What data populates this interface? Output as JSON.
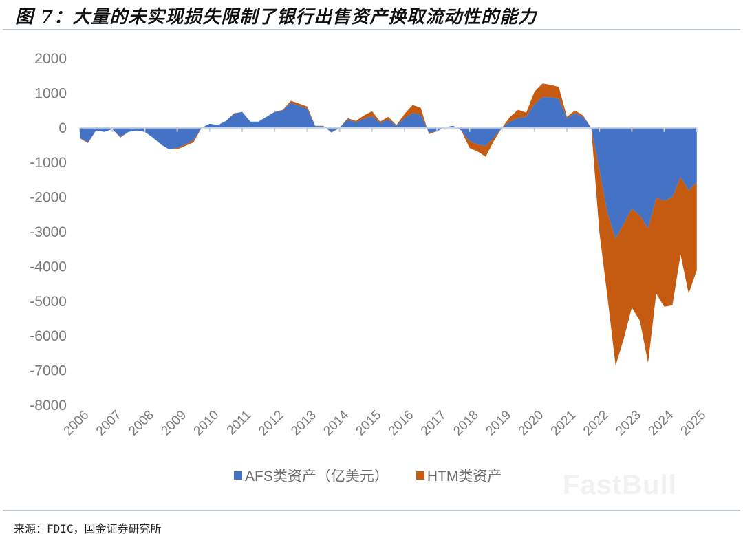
{
  "header": {
    "title": "图 7：大量的未实现损失限制了银行出售资产换取流动性的能力"
  },
  "footer": {
    "source": "来源：FDIC，国金证券研究所"
  },
  "watermark": "FastBull",
  "colors": {
    "afs": "#4472C4",
    "htm": "#C55A11",
    "axis": "#c8d2dc",
    "text": "#7a7a7a"
  },
  "chart_data": {
    "type": "area",
    "stacked": true,
    "title": "大量的未实现损失限制了银行出售资产换取流动性的能力",
    "xlabel": "",
    "ylabel": "",
    "ylim": [
      -8000,
      2000
    ],
    "yticks": [
      2000,
      1000,
      0,
      -1000,
      -2000,
      -3000,
      -4000,
      -5000,
      -6000,
      -7000,
      -8000
    ],
    "xtick_labels": [
      "2006",
      "2007",
      "2008",
      "2009",
      "2010",
      "2011",
      "2012",
      "2013",
      "2014",
      "2015",
      "2016",
      "2017",
      "2018",
      "2019",
      "2020",
      "2021",
      "2022",
      "2023",
      "2024",
      "2025"
    ],
    "grid": false,
    "legend_position": "bottom",
    "x": [
      "2006Q1",
      "2006Q2",
      "2006Q3",
      "2006Q4",
      "2007Q1",
      "2007Q2",
      "2007Q3",
      "2007Q4",
      "2008Q1",
      "2008Q2",
      "2008Q3",
      "2008Q4",
      "2009Q1",
      "2009Q2",
      "2009Q3",
      "2009Q4",
      "2010Q1",
      "2010Q2",
      "2010Q3",
      "2010Q4",
      "2011Q1",
      "2011Q2",
      "2011Q3",
      "2011Q4",
      "2012Q1",
      "2012Q2",
      "2012Q3",
      "2012Q4",
      "2013Q1",
      "2013Q2",
      "2013Q3",
      "2013Q4",
      "2014Q1",
      "2014Q2",
      "2014Q3",
      "2014Q4",
      "2015Q1",
      "2015Q2",
      "2015Q3",
      "2015Q4",
      "2016Q1",
      "2016Q2",
      "2016Q3",
      "2016Q4",
      "2017Q1",
      "2017Q2",
      "2017Q3",
      "2017Q4",
      "2018Q1",
      "2018Q2",
      "2018Q3",
      "2018Q4",
      "2019Q1",
      "2019Q2",
      "2019Q3",
      "2019Q4",
      "2020Q1",
      "2020Q2",
      "2020Q3",
      "2020Q4",
      "2021Q1",
      "2021Q2",
      "2021Q3",
      "2021Q4",
      "2022Q1",
      "2022Q2",
      "2022Q3",
      "2022Q4",
      "2023Q1",
      "2023Q2",
      "2023Q3",
      "2023Q4",
      "2024Q1",
      "2024Q2",
      "2024Q3",
      "2024Q5",
      "2025Q1"
    ],
    "series": [
      {
        "name": "AFS类资产（亿美元）",
        "color": "#4472C4",
        "values": [
          -280,
          -420,
          -80,
          -120,
          -40,
          -260,
          -120,
          -80,
          -120,
          -280,
          -480,
          -620,
          -580,
          -480,
          -360,
          0,
          120,
          80,
          200,
          400,
          460,
          180,
          180,
          320,
          460,
          500,
          720,
          640,
          560,
          50,
          50,
          -130,
          0,
          240,
          160,
          260,
          340,
          140,
          240,
          60,
          280,
          420,
          380,
          -140,
          -100,
          20,
          60,
          -80,
          -380,
          -480,
          -520,
          -280,
          0,
          180,
          280,
          320,
          680,
          880,
          880,
          840,
          280,
          420,
          320,
          0,
          -1200,
          -2460,
          -3200,
          -2760,
          -2330,
          -2530,
          -2900,
          -2020,
          -2100,
          -2000,
          -1410,
          -1800,
          -1570
        ]
      },
      {
        "name": "HTM类资产",
        "color": "#C55A11",
        "values": [
          -20,
          -20,
          0,
          0,
          0,
          -20,
          0,
          0,
          0,
          0,
          0,
          0,
          -40,
          -40,
          -60,
          0,
          0,
          0,
          0,
          20,
          0,
          0,
          0,
          0,
          0,
          20,
          60,
          60,
          60,
          10,
          10,
          -10,
          0,
          40,
          40,
          100,
          140,
          40,
          80,
          20,
          120,
          240,
          200,
          -40,
          0,
          0,
          0,
          0,
          -200,
          -200,
          -310,
          -100,
          0,
          140,
          240,
          120,
          360,
          400,
          360,
          340,
          40,
          80,
          40,
          0,
          -1800,
          -2420,
          -3660,
          -3330,
          -2850,
          -3040,
          -3880,
          -2760,
          -3060,
          -3120,
          -2240,
          -2980,
          -2540
        ]
      }
    ]
  },
  "legend": [
    {
      "label": "AFS类资产（亿美元）",
      "color": "#4472C4"
    },
    {
      "label": "HTM类资产",
      "color": "#C55A11"
    }
  ]
}
